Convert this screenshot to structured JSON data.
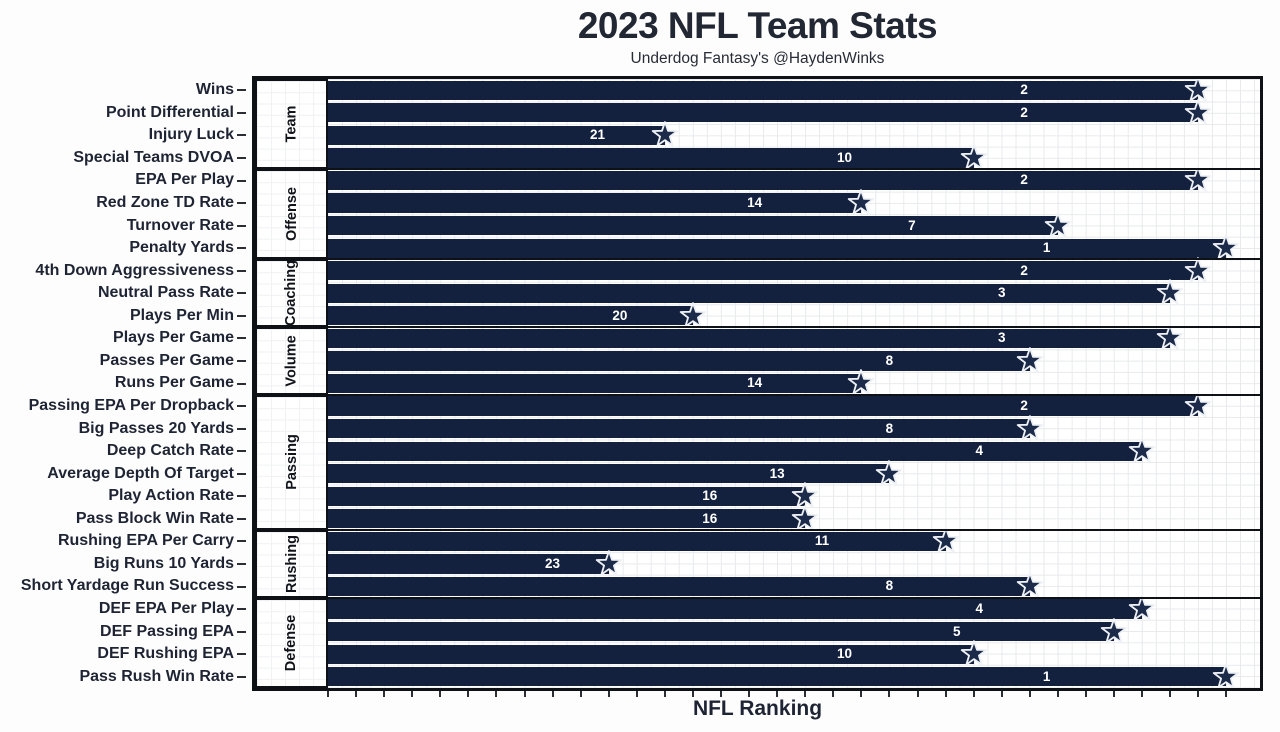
{
  "header": {
    "title": "2023 NFL Team Stats",
    "subtitle": "Underdog Fantasy's @HaydenWinks"
  },
  "chart_data": {
    "type": "bar",
    "orientation": "horizontal",
    "title": "2023 NFL Team Stats",
    "subtitle": "Underdog Fantasy's @HaydenWinks",
    "xlabel": "NFL Ranking",
    "xlim": [
      0,
      33.2
    ],
    "x_ticks": "unlabeled ticks at every integer 0-32",
    "grid": true,
    "legend": "none",
    "value_encoding": "bar length = 33 - rank (rank 1 = longest bar); rank number printed in white at 80% of bar length; Dallas Cowboys star marker at bar tip",
    "facet_groups": [
      "Team",
      "Offense",
      "Coaching",
      "Volume",
      "Passing",
      "Rushing",
      "Defense"
    ],
    "rows": [
      {
        "group": "Team",
        "label": "Wins",
        "rank": 2
      },
      {
        "group": "Team",
        "label": "Point Differential",
        "rank": 2
      },
      {
        "group": "Team",
        "label": "Injury Luck",
        "rank": 21
      },
      {
        "group": "Team",
        "label": "Special Teams DVOA",
        "rank": 10
      },
      {
        "group": "Offense",
        "label": "EPA Per Play",
        "rank": 2
      },
      {
        "group": "Offense",
        "label": "Red Zone TD Rate",
        "rank": 14
      },
      {
        "group": "Offense",
        "label": "Turnover Rate",
        "rank": 7
      },
      {
        "group": "Offense",
        "label": "Penalty Yards",
        "rank": 1
      },
      {
        "group": "Coaching",
        "label": "4th Down Aggressiveness",
        "rank": 2
      },
      {
        "group": "Coaching",
        "label": "Neutral Pass Rate",
        "rank": 3
      },
      {
        "group": "Coaching",
        "label": "Plays Per Min",
        "rank": 20
      },
      {
        "group": "Volume",
        "label": "Plays Per Game",
        "rank": 3
      },
      {
        "group": "Volume",
        "label": "Passes Per Game",
        "rank": 8
      },
      {
        "group": "Volume",
        "label": "Runs Per Game",
        "rank": 14
      },
      {
        "group": "Passing",
        "label": "Passing EPA Per Dropback",
        "rank": 2
      },
      {
        "group": "Passing",
        "label": "Big Passes 20 Yards",
        "rank": 8
      },
      {
        "group": "Passing",
        "label": "Deep Catch Rate",
        "rank": 4
      },
      {
        "group": "Passing",
        "label": "Average Depth Of Target",
        "rank": 13
      },
      {
        "group": "Passing",
        "label": "Play Action Rate",
        "rank": 16
      },
      {
        "group": "Passing",
        "label": "Pass Block Win Rate",
        "rank": 16
      },
      {
        "group": "Rushing",
        "label": "Rushing EPA Per Carry",
        "rank": 11
      },
      {
        "group": "Rushing",
        "label": "Big Runs 10 Yards",
        "rank": 23
      },
      {
        "group": "Rushing",
        "label": "Short Yardage Run Success",
        "rank": 8
      },
      {
        "group": "Defense",
        "label": "DEF EPA Per Play",
        "rank": 4
      },
      {
        "group": "Defense",
        "label": "DEF Passing EPA",
        "rank": 5
      },
      {
        "group": "Defense",
        "label": "DEF Rushing EPA",
        "rank": 10
      },
      {
        "group": "Defense",
        "label": "Pass Rush Win Rate",
        "rank": 1
      }
    ]
  },
  "colors": {
    "bar": "#13213f",
    "star_fill": "#1d2b4b",
    "star_stroke": "#eef1f5",
    "text": "#1e2433",
    "grid": "#e8eaec",
    "border": "#0e1116",
    "bar_label": "#ffffff",
    "background": "#fdfdfe"
  }
}
